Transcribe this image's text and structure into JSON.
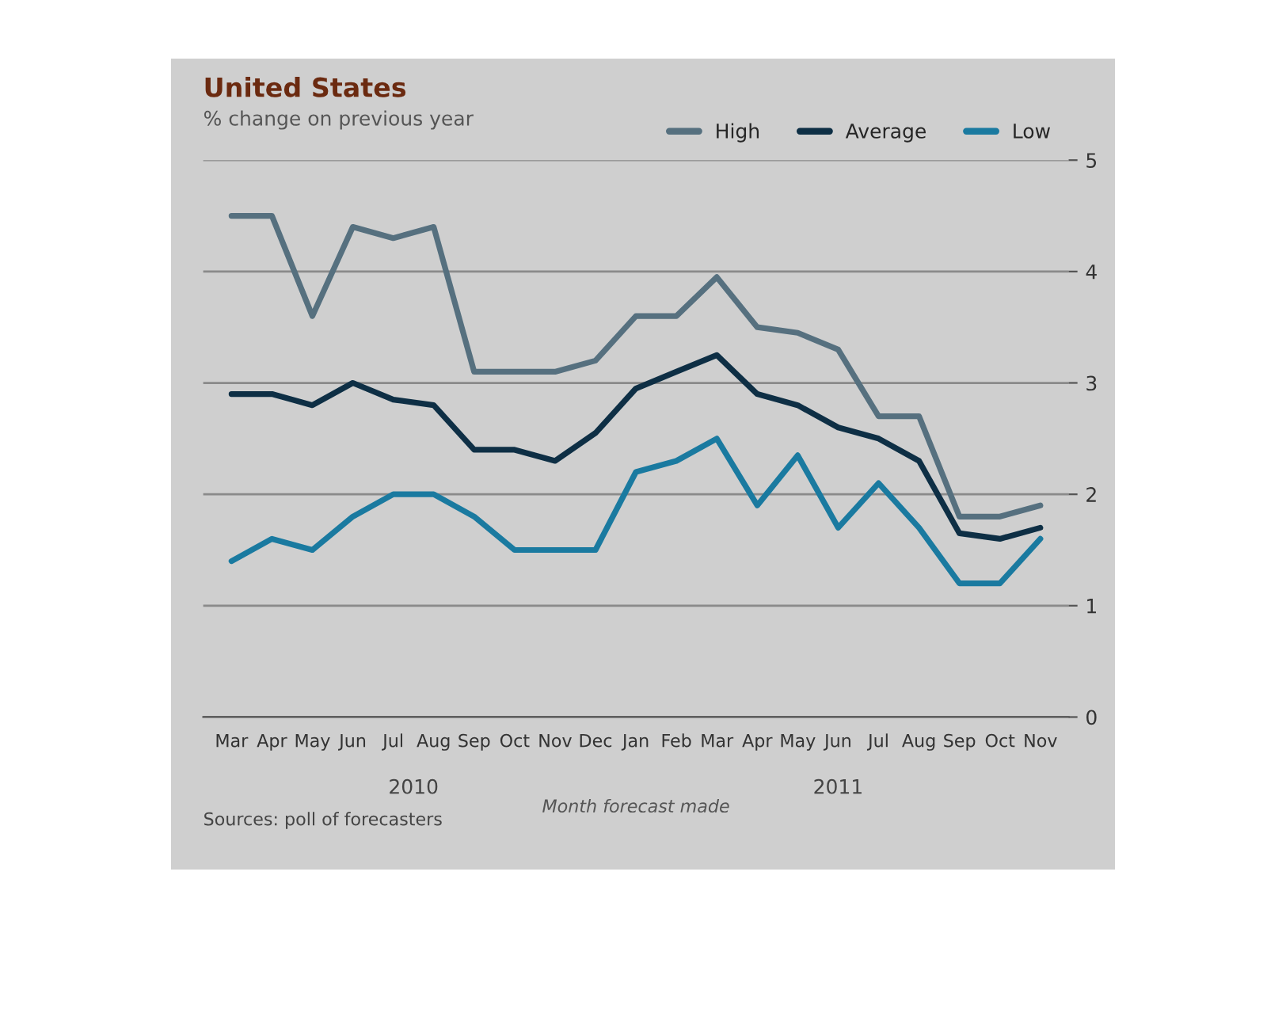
{
  "chart_data": {
    "type": "line",
    "title": "United States",
    "subtitle": "% change on previous year",
    "xlabel": "Month forecast made",
    "categories": [
      "Mar",
      "Apr",
      "May",
      "Jun",
      "Jul",
      "Aug",
      "Sep",
      "Oct",
      "Nov",
      "Dec",
      "Jan",
      "Feb",
      "Mar",
      "Apr",
      "May",
      "Jun",
      "Jul",
      "Aug",
      "Sep",
      "Oct",
      "Nov"
    ],
    "series": [
      {
        "name": "High",
        "color": "#56707f",
        "values": [
          4.5,
          4.5,
          3.6,
          4.4,
          4.3,
          4.4,
          3.1,
          3.1,
          3.1,
          3.2,
          3.6,
          3.6,
          3.95,
          3.5,
          3.45,
          3.3,
          2.7,
          2.7,
          1.8,
          1.8,
          1.9
        ]
      },
      {
        "name": "Average",
        "color": "#0e2f45",
        "values": [
          2.9,
          2.9,
          2.8,
          3.0,
          2.85,
          2.8,
          2.4,
          2.4,
          2.3,
          2.55,
          2.95,
          3.1,
          3.25,
          2.9,
          2.8,
          2.6,
          2.5,
          2.3,
          1.65,
          1.6,
          1.7
        ]
      },
      {
        "name": "Low",
        "color": "#1a7aa0",
        "values": [
          1.4,
          1.6,
          1.5,
          1.8,
          2.0,
          2.0,
          1.8,
          1.5,
          1.5,
          1.5,
          2.2,
          2.3,
          2.5,
          1.9,
          2.35,
          1.7,
          2.1,
          1.7,
          1.2,
          1.2,
          1.6
        ]
      }
    ],
    "ylim": [
      0,
      5
    ],
    "yticks": [
      0,
      1,
      2,
      3,
      4,
      5
    ],
    "grid": "y",
    "legend": "top right",
    "annotations": [
      "2010",
      "2011",
      "Sources: poll of forecasters"
    ]
  }
}
